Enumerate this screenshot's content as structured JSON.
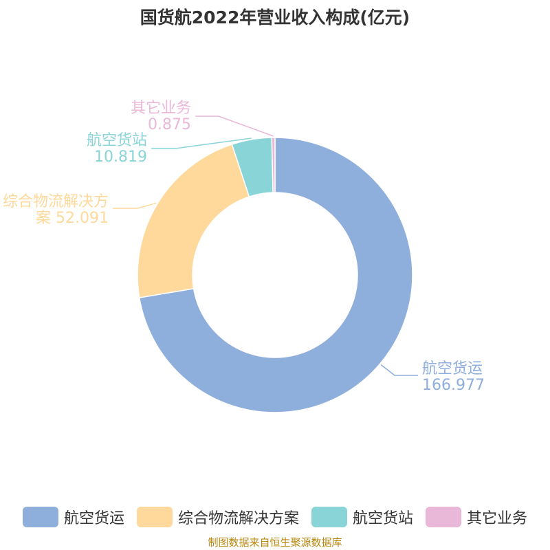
{
  "title": "国货航2022年营业收入构成(亿元)",
  "source": "制图数据来自恒生聚源数据库",
  "chart_data": {
    "type": "pie",
    "variant": "donut",
    "title": "国货航2022年营业收入构成(亿元)",
    "legend_position": "bottom",
    "slices": [
      {
        "name": "航空货运",
        "label_lines": [
          "航空货运",
          "166.977"
        ],
        "value": 166.977,
        "color": "#8eaedc"
      },
      {
        "name": "综合物流解决方案",
        "label_lines": [
          "综合物流解决方",
          "案 52.091"
        ],
        "value": 52.091,
        "color": "#fed99b"
      },
      {
        "name": "航空货站",
        "label_lines": [
          "航空货站",
          "10.819"
        ],
        "value": 10.819,
        "color": "#88d4d7"
      },
      {
        "name": "其它业务",
        "label_lines": [
          "其它业务",
          "0.875"
        ],
        "value": 0.875,
        "color": "#e9b8d9"
      }
    ]
  }
}
